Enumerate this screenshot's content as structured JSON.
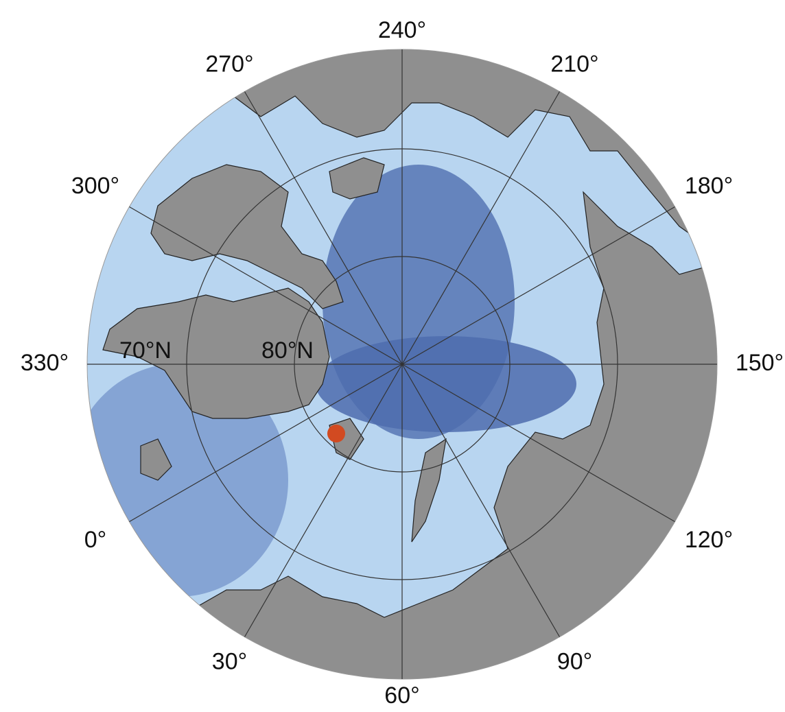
{
  "meridians": [
    {
      "value": 240,
      "label": "240°"
    },
    {
      "value": 210,
      "label": "210°"
    },
    {
      "value": 180,
      "label": "180°"
    },
    {
      "value": 150,
      "label": "150°"
    },
    {
      "value": 120,
      "label": "120°"
    },
    {
      "value": 90,
      "label": "90°"
    },
    {
      "value": 60,
      "label": "60°"
    },
    {
      "value": 30,
      "label": "30°"
    },
    {
      "value": 0,
      "label": "0°"
    },
    {
      "value": 330,
      "label": "330°"
    },
    {
      "value": 300,
      "label": "300°"
    },
    {
      "value": 270,
      "label": "270°"
    }
  ],
  "parallels": [
    {
      "value": 70,
      "label": "70°N"
    },
    {
      "value": 80,
      "label": "80°N"
    }
  ]
}
